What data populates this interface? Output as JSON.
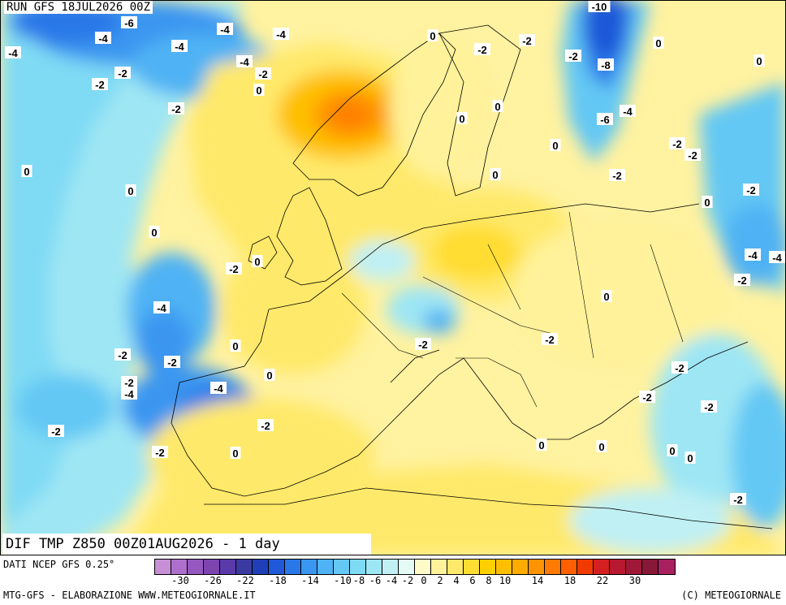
{
  "header": {
    "run": "RUN GFS 18JUL2026 00Z"
  },
  "title": "DIF TMP Z850 00Z01AUG2026 - 1 day",
  "footer": {
    "source": "DATI NCEP GFS 0.25°",
    "elaboration": "MTG-GFS - ELABORAZIONE WWW.METEOGIORNALE.IT",
    "credit": "(C) METEOGIORNALE"
  },
  "scale": {
    "colors": [
      "#c78fd6",
      "#ad6fcc",
      "#9557c0",
      "#7d44b0",
      "#5a3aa8",
      "#3b3aa0",
      "#1f3fb8",
      "#1f58d8",
      "#2a78e8",
      "#3a96f0",
      "#4fb2f4",
      "#64c8f4",
      "#7fdaf4",
      "#9ee6f4",
      "#c0f0f4",
      "#e4faf4",
      "#fffbc8",
      "#fff29a",
      "#ffe96a",
      "#ffdd33",
      "#ffd000",
      "#ffbf00",
      "#ffab00",
      "#ff9300",
      "#ff7a00",
      "#ff5f00",
      "#f03a00",
      "#d42020",
      "#b81830",
      "#a01838",
      "#881838",
      "#a82060"
    ],
    "tick_labels": [
      "-30",
      "-26",
      "-22",
      "-18",
      "-14",
      "-10",
      "-8",
      "-6",
      "-4",
      "-2",
      "0",
      "2",
      "4",
      "6",
      "8",
      "10",
      "14",
      "18",
      "22",
      "30"
    ]
  },
  "map_labels": [
    "-6",
    "-4",
    "-4",
    "-4",
    "-4",
    "-4",
    "-2",
    "-2",
    "-2",
    "-4",
    "-2",
    "0",
    "-2",
    "-2",
    "-2",
    "-10",
    "-8",
    "-4",
    "-6",
    "0",
    "0",
    "0",
    "0",
    "0",
    "0",
    "-2",
    "-2",
    "-2",
    "0",
    "0",
    "-2",
    "-4",
    "-4",
    "-2",
    "0",
    "0",
    "-2",
    "-2",
    "-4",
    "-2",
    "-2",
    "-4",
    "0",
    "-2",
    "0",
    "0",
    "-2",
    "-2",
    "0",
    "0",
    "0",
    "-2",
    "-4",
    "-2",
    "-2",
    "-2",
    "-2",
    "0",
    "0",
    "-2",
    "0",
    "0"
  ]
}
